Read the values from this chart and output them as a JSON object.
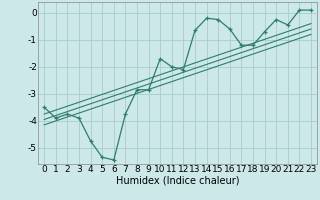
{
  "xlabel": "Humidex (Indice chaleur)",
  "background_color": "#cce8e8",
  "grid_color": "#aacccc",
  "line_color": "#2e7d6e",
  "xlim": [
    -0.5,
    23.5
  ],
  "ylim": [
    -5.6,
    0.4
  ],
  "xticks": [
    0,
    1,
    2,
    3,
    4,
    5,
    6,
    7,
    8,
    9,
    10,
    11,
    12,
    13,
    14,
    15,
    16,
    17,
    18,
    19,
    20,
    21,
    22,
    23
  ],
  "yticks": [
    0,
    -1,
    -2,
    -3,
    -4,
    -5
  ],
  "main_x": [
    0,
    1,
    2,
    3,
    4,
    5,
    6,
    7,
    8,
    9,
    10,
    11,
    12,
    13,
    14,
    15,
    16,
    17,
    18,
    19,
    20,
    21,
    22,
    23
  ],
  "main_y": [
    -3.5,
    -3.9,
    -3.75,
    -3.9,
    -4.75,
    -5.35,
    -5.45,
    -3.75,
    -2.85,
    -2.85,
    -1.7,
    -2.0,
    -2.1,
    -0.65,
    -0.2,
    -0.25,
    -0.6,
    -1.2,
    -1.2,
    -0.7,
    -0.25,
    -0.45,
    0.1,
    0.1
  ],
  "reg_lines": [
    [
      [
        0,
        23
      ],
      [
        -3.75,
        -0.4
      ]
    ],
    [
      [
        0,
        23
      ],
      [
        -3.95,
        -0.6
      ]
    ],
    [
      [
        0,
        23
      ],
      [
        -4.15,
        -0.8
      ]
    ]
  ],
  "fontsize_label": 7,
  "fontsize_tick": 6.5
}
